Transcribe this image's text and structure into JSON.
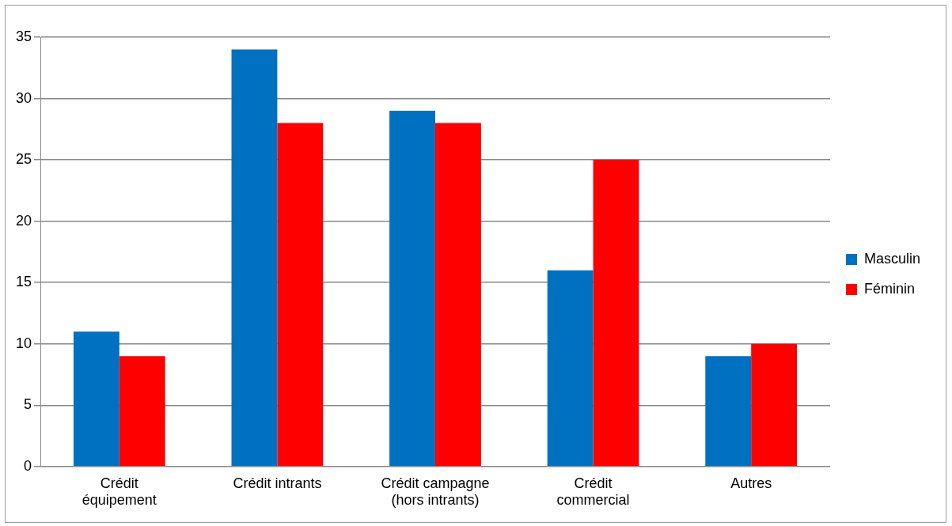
{
  "chart_data": {
    "type": "bar",
    "categories": [
      "Crédit équipement",
      "Crédit intrants",
      "Crédit campagne (hors intrants)",
      "Crédit commercial",
      "Autres"
    ],
    "series": [
      {
        "name": "Masculin",
        "color": "#0070c0",
        "values": [
          11,
          34,
          29,
          16,
          9
        ]
      },
      {
        "name": "Féminin",
        "color": "#ff0000",
        "values": [
          9,
          28,
          28,
          25,
          10
        ]
      }
    ],
    "ylim": [
      0,
      35
    ],
    "yticks": [
      0,
      5,
      10,
      15,
      20,
      25,
      30,
      35
    ],
    "grid": "y",
    "legend": "right"
  }
}
